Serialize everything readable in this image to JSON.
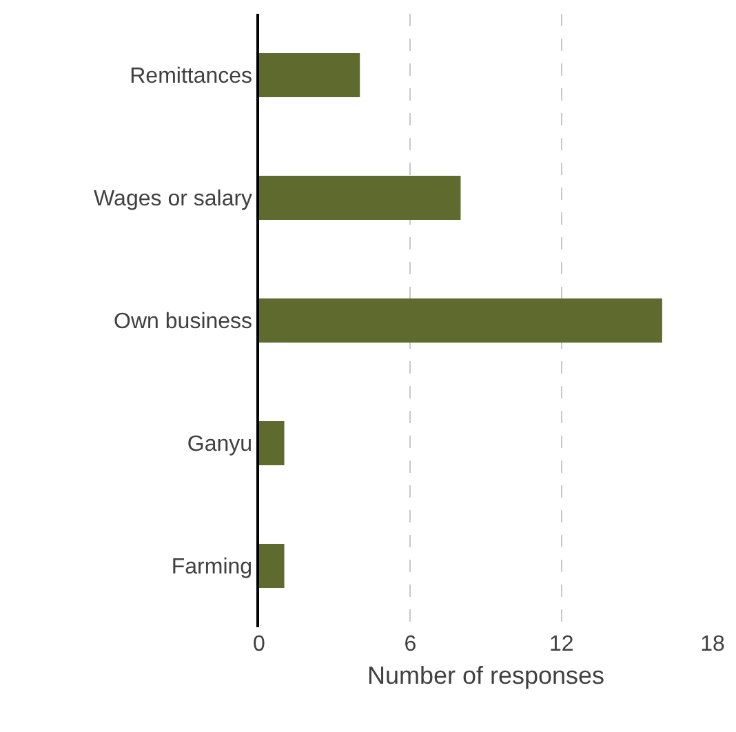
{
  "chart_data": {
    "type": "bar",
    "orientation": "horizontal",
    "xlabel": "Number of responses",
    "categories": [
      "Remittances",
      "Wages or salary",
      "Own business",
      "Ganyu",
      "Farming"
    ],
    "values": [
      4,
      8,
      16,
      1,
      1
    ],
    "color": "#5f6b2e",
    "xlim": [
      0,
      18
    ],
    "xticks": [
      0,
      6,
      12,
      18
    ],
    "grid": "x",
    "line_style": "dashed"
  }
}
